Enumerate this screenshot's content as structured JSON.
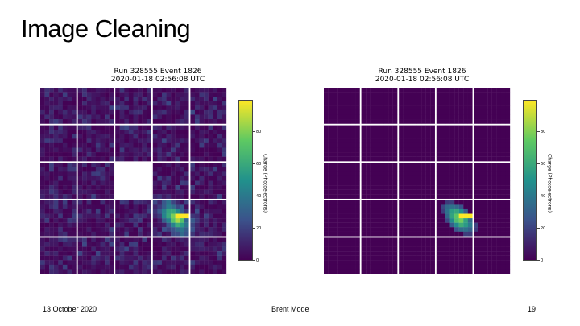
{
  "slide": {
    "title": "Image Cleaning"
  },
  "footer": {
    "date": "13 October 2020",
    "author": "Brent Mode",
    "page": "19"
  },
  "colorbar": {
    "label": "Charge (Photoelectrons)",
    "ticks": [
      "0",
      "20",
      "40",
      "60",
      "80"
    ],
    "colors": [
      "#440154",
      "#3b528b",
      "#21918c",
      "#5ec962",
      "#fde725"
    ]
  },
  "plots": [
    {
      "title_line1": "Run 328555 Event 1826",
      "title_line2": "2020-01-18 02:56:08 UTC",
      "variant": "raw"
    },
    {
      "title_line1": "Run 328555 Event 1826",
      "title_line2": "2020-01-18 02:56:08 UTC",
      "variant": "cleaned"
    }
  ],
  "chart_data": [
    {
      "type": "heatmap",
      "title": "Run 328555 Event 1826\n2020-01-18 02:56:08 UTC",
      "colorbar_label": "Charge (Photoelectrons)",
      "colorbar_ticks": [
        0,
        20,
        40,
        60,
        80
      ],
      "range": [
        0,
        100
      ],
      "grid": "5x5 modules of 8x8 pixels",
      "missing_module": [
        2,
        2
      ],
      "description_values": "noisy background ~0-20 with shower ~40-100 near module row 3 col 3"
    },
    {
      "type": "heatmap",
      "title": "Run 328555 Event 1826\n2020-01-18 02:56:08 UTC",
      "colorbar_label": "Charge (Photoelectrons)",
      "colorbar_ticks": [
        0,
        20,
        40,
        60,
        80
      ],
      "range": [
        0,
        100
      ],
      "grid": "5x5 modules of 8x8 pixels",
      "description_values": "background set to 0; only shower pixels ~20-100 remain"
    }
  ]
}
